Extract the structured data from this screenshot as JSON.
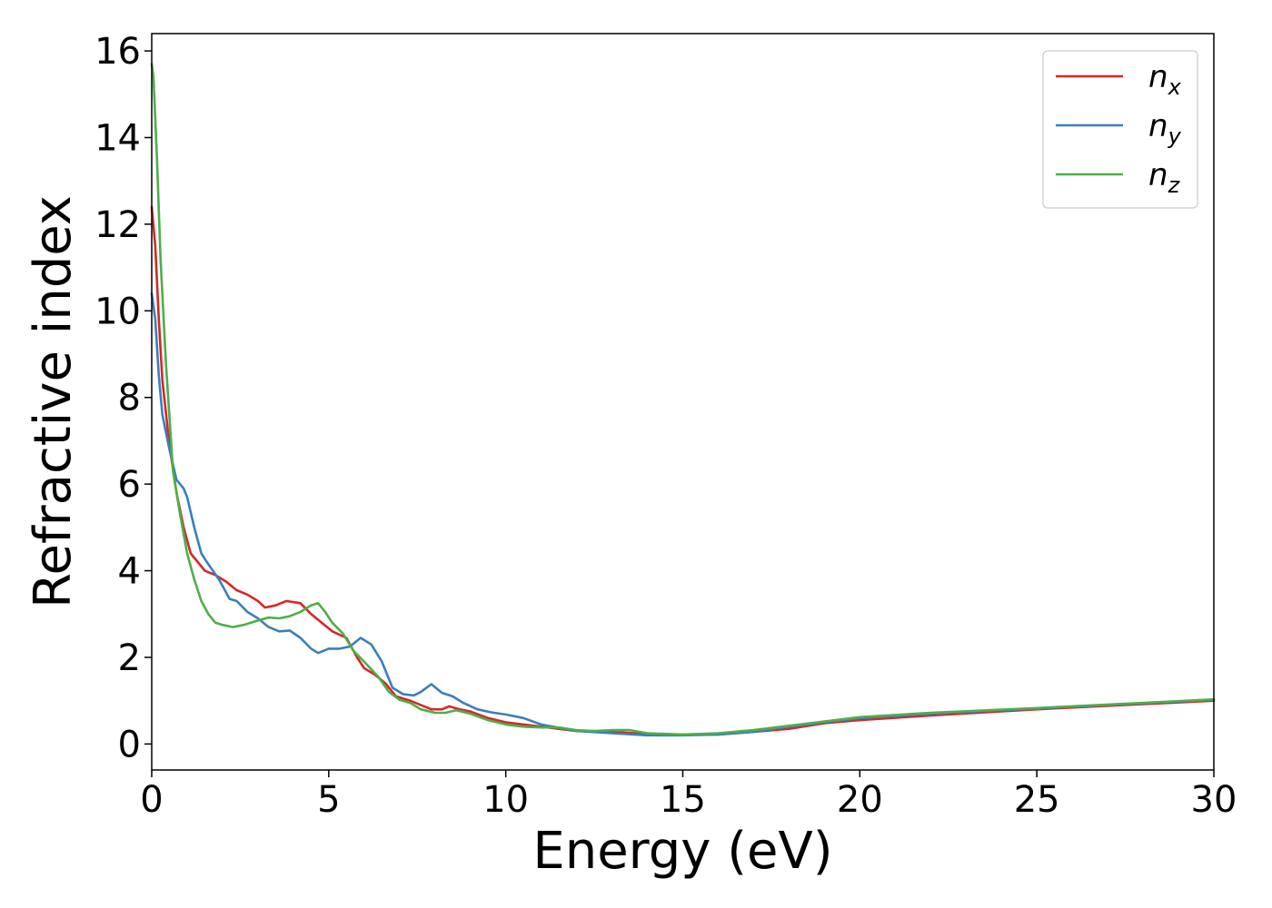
{
  "chart_data": {
    "type": "line",
    "title": "",
    "xlabel": "Energy (eV)",
    "ylabel": "Refractive index",
    "xlim": [
      0,
      30
    ],
    "ylim": [
      -0.6,
      16.4
    ],
    "xticks": [
      0,
      5,
      10,
      15,
      20,
      25,
      30
    ],
    "xtick_labels": [
      "0",
      "5",
      "10",
      "15",
      "20",
      "25",
      "30"
    ],
    "yticks": [
      0,
      2,
      4,
      6,
      8,
      10,
      12,
      14,
      16
    ],
    "ytick_labels": [
      "0",
      "2",
      "4",
      "6",
      "8",
      "10",
      "12",
      "14",
      "16"
    ],
    "grid": false,
    "legend": "top-right",
    "series": [
      {
        "name": "n",
        "subscript": "x",
        "color": "#d62728",
        "points": [
          [
            0,
            12.4
          ],
          [
            0.1,
            11.5
          ],
          [
            0.2,
            9.8
          ],
          [
            0.3,
            8.4
          ],
          [
            0.5,
            6.9
          ],
          [
            0.7,
            5.8
          ],
          [
            0.9,
            5.0
          ],
          [
            1.1,
            4.4
          ],
          [
            1.3,
            4.2
          ],
          [
            1.5,
            4.0
          ],
          [
            1.8,
            3.9
          ],
          [
            2.1,
            3.75
          ],
          [
            2.4,
            3.55
          ],
          [
            2.7,
            3.45
          ],
          [
            3.0,
            3.3
          ],
          [
            3.2,
            3.15
          ],
          [
            3.5,
            3.2
          ],
          [
            3.8,
            3.3
          ],
          [
            4.2,
            3.25
          ],
          [
            4.5,
            3.0
          ],
          [
            4.8,
            2.8
          ],
          [
            5.1,
            2.6
          ],
          [
            5.5,
            2.45
          ],
          [
            5.8,
            2.0
          ],
          [
            6.0,
            1.75
          ],
          [
            6.3,
            1.6
          ],
          [
            6.6,
            1.4
          ],
          [
            6.9,
            1.1
          ],
          [
            7.3,
            1.0
          ],
          [
            7.6,
            0.9
          ],
          [
            7.9,
            0.8
          ],
          [
            8.2,
            0.8
          ],
          [
            8.4,
            0.87
          ],
          [
            8.7,
            0.8
          ],
          [
            9.0,
            0.75
          ],
          [
            9.5,
            0.6
          ],
          [
            10,
            0.5
          ],
          [
            10.5,
            0.45
          ],
          [
            11,
            0.4
          ],
          [
            12,
            0.3
          ],
          [
            13,
            0.28
          ],
          [
            14,
            0.23
          ],
          [
            15,
            0.22
          ],
          [
            16,
            0.22
          ],
          [
            17,
            0.28
          ],
          [
            18,
            0.35
          ],
          [
            19,
            0.48
          ],
          [
            20,
            0.55
          ],
          [
            22,
            0.66
          ],
          [
            25,
            0.8
          ],
          [
            28,
            0.92
          ],
          [
            30,
            1.0
          ]
        ]
      },
      {
        "name": "n",
        "subscript": "y",
        "color": "#3a7fbd",
        "points": [
          [
            0,
            10.4
          ],
          [
            0.1,
            9.8
          ],
          [
            0.2,
            8.5
          ],
          [
            0.3,
            7.6
          ],
          [
            0.5,
            6.8
          ],
          [
            0.7,
            6.1
          ],
          [
            0.9,
            5.9
          ],
          [
            1.0,
            5.7
          ],
          [
            1.2,
            5.0
          ],
          [
            1.4,
            4.4
          ],
          [
            1.6,
            4.15
          ],
          [
            1.9,
            3.8
          ],
          [
            2.2,
            3.35
          ],
          [
            2.4,
            3.3
          ],
          [
            2.7,
            3.05
          ],
          [
            3.0,
            2.9
          ],
          [
            3.3,
            2.7
          ],
          [
            3.6,
            2.6
          ],
          [
            3.9,
            2.62
          ],
          [
            4.2,
            2.45
          ],
          [
            4.5,
            2.2
          ],
          [
            4.7,
            2.1
          ],
          [
            5.0,
            2.2
          ],
          [
            5.3,
            2.2
          ],
          [
            5.6,
            2.25
          ],
          [
            5.9,
            2.45
          ],
          [
            6.2,
            2.3
          ],
          [
            6.5,
            1.9
          ],
          [
            6.8,
            1.3
          ],
          [
            7.1,
            1.15
          ],
          [
            7.4,
            1.12
          ],
          [
            7.6,
            1.2
          ],
          [
            7.9,
            1.38
          ],
          [
            8.2,
            1.18
          ],
          [
            8.5,
            1.1
          ],
          [
            8.8,
            0.95
          ],
          [
            9.2,
            0.8
          ],
          [
            9.6,
            0.73
          ],
          [
            10,
            0.68
          ],
          [
            10.5,
            0.6
          ],
          [
            11,
            0.45
          ],
          [
            12,
            0.3
          ],
          [
            13,
            0.25
          ],
          [
            14,
            0.2
          ],
          [
            15,
            0.2
          ],
          [
            16,
            0.22
          ],
          [
            17,
            0.28
          ],
          [
            18,
            0.4
          ],
          [
            19,
            0.5
          ],
          [
            20,
            0.6
          ],
          [
            22,
            0.7
          ],
          [
            25,
            0.82
          ],
          [
            28,
            0.94
          ],
          [
            30,
            1.02
          ]
        ]
      },
      {
        "name": "n",
        "subscript": "z",
        "color": "#4daf4a",
        "points": [
          [
            0,
            15.7
          ],
          [
            0.05,
            15.4
          ],
          [
            0.15,
            13.5
          ],
          [
            0.25,
            11.2
          ],
          [
            0.4,
            8.8
          ],
          [
            0.6,
            6.3
          ],
          [
            0.8,
            5.3
          ],
          [
            1.0,
            4.4
          ],
          [
            1.2,
            3.8
          ],
          [
            1.4,
            3.3
          ],
          [
            1.6,
            3.0
          ],
          [
            1.8,
            2.8
          ],
          [
            2.0,
            2.75
          ],
          [
            2.3,
            2.7
          ],
          [
            2.6,
            2.75
          ],
          [
            3.0,
            2.85
          ],
          [
            3.3,
            2.92
          ],
          [
            3.6,
            2.9
          ],
          [
            3.9,
            2.95
          ],
          [
            4.2,
            3.05
          ],
          [
            4.5,
            3.2
          ],
          [
            4.7,
            3.25
          ],
          [
            4.9,
            3.05
          ],
          [
            5.1,
            2.8
          ],
          [
            5.4,
            2.55
          ],
          [
            5.7,
            2.15
          ],
          [
            6.0,
            1.9
          ],
          [
            6.4,
            1.55
          ],
          [
            6.7,
            1.2
          ],
          [
            7.0,
            1.02
          ],
          [
            7.3,
            0.95
          ],
          [
            7.6,
            0.8
          ],
          [
            8.0,
            0.72
          ],
          [
            8.3,
            0.72
          ],
          [
            8.6,
            0.78
          ],
          [
            9.0,
            0.7
          ],
          [
            9.5,
            0.55
          ],
          [
            10,
            0.45
          ],
          [
            10.5,
            0.4
          ],
          [
            11,
            0.38
          ],
          [
            11.5,
            0.38
          ],
          [
            12,
            0.32
          ],
          [
            12.5,
            0.3
          ],
          [
            13,
            0.32
          ],
          [
            13.5,
            0.32
          ],
          [
            14,
            0.25
          ],
          [
            15,
            0.22
          ],
          [
            16,
            0.25
          ],
          [
            17,
            0.32
          ],
          [
            18,
            0.42
          ],
          [
            19,
            0.52
          ],
          [
            20,
            0.62
          ],
          [
            22,
            0.72
          ],
          [
            25,
            0.83
          ],
          [
            28,
            0.95
          ],
          [
            30,
            1.03
          ]
        ]
      }
    ]
  }
}
